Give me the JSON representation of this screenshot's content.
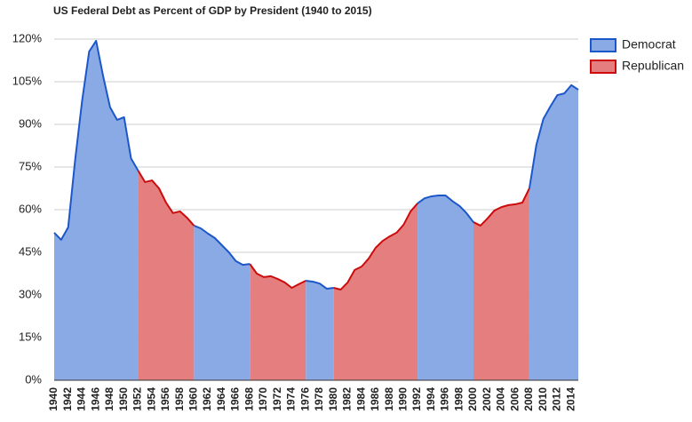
{
  "chart_data": {
    "type": "area",
    "title": "US Federal Debt as Percent of GDP by President (1940 to 2015)",
    "x": [
      1940,
      1941,
      1942,
      1943,
      1944,
      1945,
      1946,
      1947,
      1948,
      1949,
      1950,
      1951,
      1952,
      1953,
      1954,
      1955,
      1956,
      1957,
      1958,
      1959,
      1960,
      1961,
      1962,
      1963,
      1964,
      1965,
      1966,
      1967,
      1968,
      1969,
      1970,
      1971,
      1972,
      1973,
      1974,
      1975,
      1976,
      1977,
      1978,
      1979,
      1980,
      1981,
      1982,
      1983,
      1984,
      1985,
      1986,
      1987,
      1988,
      1989,
      1990,
      1991,
      1992,
      1993,
      1994,
      1995,
      1996,
      1997,
      1998,
      1999,
      2000,
      2001,
      2002,
      2003,
      2004,
      2005,
      2006,
      2007,
      2008,
      2009,
      2010,
      2011,
      2012,
      2013,
      2014,
      2015
    ],
    "series": [
      {
        "name": "Democrat",
        "color": "#8aaae6",
        "line_color": "#1c57c9",
        "values": [
          51.9,
          49.4,
          53.8,
          77.5,
          98.4,
          115.6,
          119.4,
          107,
          96,
          91.6,
          92.5,
          78,
          73.8,
          null,
          null,
          null,
          null,
          null,
          null,
          null,
          54.4,
          53.4,
          51.6,
          50,
          47.5,
          45,
          41.9,
          40.6,
          40.9,
          null,
          null,
          null,
          null,
          null,
          null,
          null,
          35,
          34.7,
          34,
          32.2,
          32.5,
          null,
          null,
          null,
          null,
          null,
          null,
          null,
          null,
          null,
          null,
          null,
          62.2,
          64,
          64.7,
          65,
          65,
          63,
          61.3,
          58.8,
          55.6,
          null,
          null,
          null,
          null,
          null,
          null,
          null,
          67.5,
          82.8,
          91.9,
          96.3,
          100.3,
          100.9,
          103.8,
          102.2
        ]
      },
      {
        "name": "Republican",
        "color": "#e57f7f",
        "line_color": "#cc0c0c",
        "values": [
          null,
          null,
          null,
          null,
          null,
          null,
          null,
          null,
          null,
          null,
          null,
          null,
          73.8,
          69.7,
          70.3,
          67.5,
          62.5,
          58.8,
          59.4,
          57.2,
          54.4,
          null,
          null,
          null,
          null,
          null,
          null,
          null,
          40.9,
          37.5,
          36.3,
          36.6,
          35.6,
          34.4,
          32.5,
          33.8,
          35,
          null,
          null,
          null,
          32.5,
          31.9,
          34.4,
          38.8,
          40,
          42.8,
          46.6,
          49,
          50.6,
          51.9,
          54.7,
          59.4,
          62.2,
          null,
          null,
          null,
          null,
          null,
          null,
          null,
          55.6,
          54.4,
          56.9,
          59.7,
          60.9,
          61.6,
          61.9,
          62.5,
          67.5,
          null,
          null,
          null,
          null,
          null,
          null,
          null
        ]
      }
    ],
    "xlim": [
      1940,
      2015
    ],
    "xticks": [
      1940,
      1942,
      1944,
      1946,
      1948,
      1950,
      1952,
      1954,
      1956,
      1958,
      1960,
      1962,
      1964,
      1966,
      1968,
      1970,
      1972,
      1974,
      1976,
      1978,
      1980,
      1982,
      1984,
      1986,
      1988,
      1990,
      1992,
      1994,
      1996,
      1998,
      2000,
      2002,
      2004,
      2006,
      2008,
      2010,
      2012,
      2014
    ],
    "ylim": [
      0,
      120
    ],
    "yticks": [
      {
        "value": 0,
        "label": "0%"
      },
      {
        "value": 15,
        "label": "15%"
      },
      {
        "value": 30,
        "label": "30%"
      },
      {
        "value": 45,
        "label": "45%"
      },
      {
        "value": 60,
        "label": "60%"
      },
      {
        "value": 75,
        "label": "75%"
      },
      {
        "value": 90,
        "label": "90%"
      },
      {
        "value": 105,
        "label": "105%"
      },
      {
        "value": 120,
        "label": "120%"
      }
    ],
    "grid": true,
    "legend": "right"
  }
}
